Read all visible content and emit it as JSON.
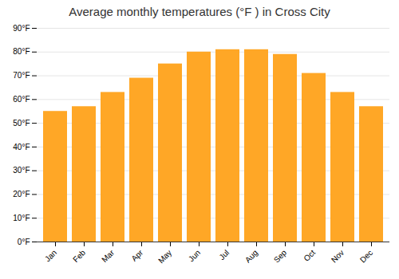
{
  "chart_data": {
    "type": "bar",
    "title": "Average monthly temperatures (°F ) in Cross City",
    "categories": [
      "Jan",
      "Feb",
      "Mar",
      "Apr",
      "May",
      "Jun",
      "Jul",
      "Aug",
      "Sep",
      "Oct",
      "Nov",
      "Dec"
    ],
    "values": [
      55,
      57,
      63,
      69,
      75,
      80,
      81,
      81,
      79,
      71,
      63,
      57
    ],
    "color": "#FFA726",
    "ylim": [
      0,
      90
    ],
    "yticks": [
      {
        "value": 0,
        "label": "0°F"
      },
      {
        "value": 10,
        "label": "10°F"
      },
      {
        "value": 20,
        "label": "20°F"
      },
      {
        "value": 30,
        "label": "30°F"
      },
      {
        "value": 40,
        "label": "40°F"
      },
      {
        "value": 50,
        "label": "50°F"
      },
      {
        "value": 60,
        "label": "60°F"
      },
      {
        "value": 70,
        "label": "70°F"
      },
      {
        "value": 80,
        "label": "80°F"
      },
      {
        "value": 90,
        "label": "90°F"
      }
    ],
    "grid": true
  }
}
